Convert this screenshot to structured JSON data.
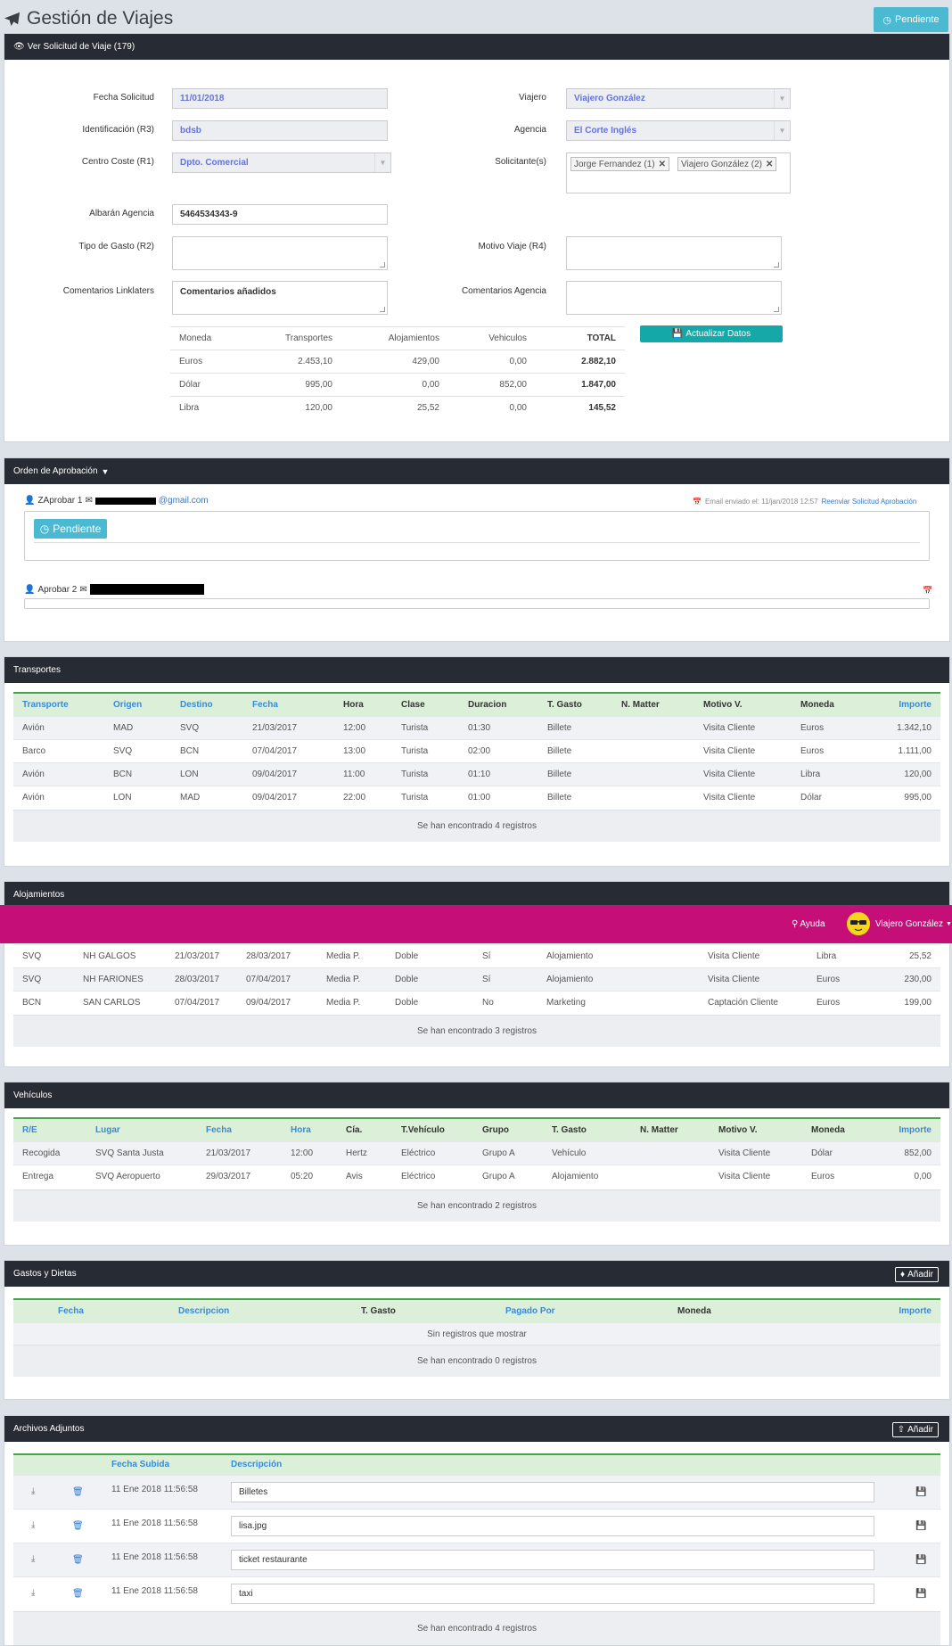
{
  "page": {
    "title": "Gestión de Viajes",
    "status_button": "Pendiente"
  },
  "solicitud": {
    "header": "Ver Solicitud de Viaje (179)",
    "fields": {
      "fecha_label": "Fecha Solicitud",
      "fecha_value": "11/01/2018",
      "ident_label": "Identificación (R3)",
      "ident_value": "bdsb",
      "centro_label": "Centro Coste (R1)",
      "centro_value": "Dpto. Comercial",
      "albaran_label": "Albarán Agencia",
      "albaran_value": "5464534343-9",
      "tipo_label": "Tipo de Gasto (R2)",
      "tipo_value": "",
      "coment_lnk_label": "Comentarios Linklaters",
      "coment_lnk_value": "Comentarios añadidos",
      "viajero_label": "Viajero",
      "viajero_value": "Viajero González",
      "agencia_label": "Agencia",
      "agencia_value": "El Corte Inglés",
      "solicitantes_label": "Solicitante(s)",
      "solicitante_1": "Jorge Fernandez (1)",
      "solicitante_2": "Viajero González (2)",
      "motivo_label": "Motivo Viaje (R4)",
      "motivo_value": "",
      "coment_ag_label": "Comentarios Agencia",
      "coment_ag_value": ""
    },
    "update_button": "Actualizar Datos",
    "currency_table": {
      "headers": [
        "Moneda",
        "Transportes",
        "Alojamientos",
        "Vehiculos",
        "TOTAL"
      ],
      "rows": [
        [
          "Euros",
          "2.453,10",
          "429,00",
          "0,00",
          "2.882,10"
        ],
        [
          "Dólar",
          "995,00",
          "0,00",
          "852,00",
          "1.847,00"
        ],
        [
          "Libra",
          "120,00",
          "25,52",
          "0,00",
          "145,52"
        ]
      ]
    }
  },
  "aprobacion": {
    "header": "Orden de Aprobación",
    "approver1": {
      "label": "ZAprobar 1",
      "email_suffix": "@gmail.com",
      "email_info": "Email enviado el: 11/jan/2018 12:57",
      "resend_link": "Reenviar Solicitud Aprobación",
      "status": "Pendiente"
    },
    "approver2": {
      "label": "Aprobar 2"
    }
  },
  "transportes": {
    "header": "Transportes",
    "columns": [
      "Transporte",
      "Origen",
      "Destino",
      "Fecha",
      "Hora",
      "Clase",
      "Duracion",
      "T. Gasto",
      "N. Matter",
      "Motivo V.",
      "Moneda",
      "Importe"
    ],
    "rows": [
      [
        "Avión",
        "MAD",
        "SVQ",
        "21/03/2017",
        "12:00",
        "Turista",
        "01:30",
        "Billete",
        "",
        "Visita Cliente",
        "Euros",
        "1.342,10"
      ],
      [
        "Barco",
        "SVQ",
        "BCN",
        "07/04/2017",
        "13:00",
        "Turista",
        "02:00",
        "Billete",
        "",
        "Visita Cliente",
        "Euros",
        "1.111,00"
      ],
      [
        "Avión",
        "BCN",
        "LON",
        "09/04/2017",
        "11:00",
        "Turista",
        "01:10",
        "Billete",
        "",
        "Visita Cliente",
        "Libra",
        "120,00"
      ],
      [
        "Avión",
        "LON",
        "MAD",
        "09/04/2017",
        "22:00",
        "Turista",
        "01:00",
        "Billete",
        "",
        "Visita Cliente",
        "Dólar",
        "995,00"
      ]
    ],
    "footer": "Se han encontrado 4 registros"
  },
  "alojamientos": {
    "header": "Alojamientos",
    "rows": [
      [
        "SVQ",
        "NH GALGOS",
        "21/03/2017",
        "28/03/2017",
        "Media P.",
        "Doble",
        "Sí",
        "Alojamiento",
        "",
        "Visita Cliente",
        "Libra",
        "25,52"
      ],
      [
        "SVQ",
        "NH FARIONES",
        "28/03/2017",
        "07/04/2017",
        "Media P.",
        "Doble",
        "Sí",
        "Alojamiento",
        "",
        "Visita Cliente",
        "Euros",
        "230,00"
      ],
      [
        "BCN",
        "SAN CARLOS",
        "07/04/2017",
        "09/04/2017",
        "Media P.",
        "Doble",
        "No",
        "Marketing",
        "",
        "Captación Cliente",
        "Euros",
        "199,00"
      ]
    ],
    "footer": "Se han encontrado 3 registros"
  },
  "banner": {
    "help": "Ayuda",
    "user": "Viajero González"
  },
  "vehiculos": {
    "header": "Vehículos",
    "columns": [
      "R/E",
      "Lugar",
      "Fecha",
      "Hora",
      "Cía.",
      "T.Vehículo",
      "Grupo",
      "T. Gasto",
      "N. Matter",
      "Motivo V.",
      "Moneda",
      "Importe"
    ],
    "rows": [
      [
        "Recogida",
        "SVQ Santa Justa",
        "21/03/2017",
        "12:00",
        "Hertz",
        "Eléctrico",
        "Grupo A",
        "Vehículo",
        "",
        "Visita Cliente",
        "Dólar",
        "852,00"
      ],
      [
        "Entrega",
        "SVQ Aeropuerto",
        "29/03/2017",
        "05:20",
        "Avis",
        "Eléctrico",
        "Grupo A",
        "Alojamiento",
        "",
        "Visita Cliente",
        "Euros",
        "0,00"
      ]
    ],
    "footer": "Se han encontrado 2 registros"
  },
  "gastos": {
    "header": "Gastos y Dietas",
    "add_button": "Añadir",
    "columns": [
      "Fecha",
      "Descripcion",
      "T. Gasto",
      "Pagado Por",
      "Moneda",
      "Importe"
    ],
    "empty": "Sin registros que mostrar",
    "footer": "Se han encontrado 0 registros"
  },
  "adjuntos": {
    "header": "Archivos Adjuntos",
    "add_button": "Añadir",
    "columns": [
      "Fecha Subida",
      "Descripción"
    ],
    "rows": [
      {
        "fecha": "11 Ene 2018 11:56:58",
        "desc": "Billetes"
      },
      {
        "fecha": "11 Ene 2018 11:56:58",
        "desc": "lisa.jpg"
      },
      {
        "fecha": "11 Ene 2018 11:56:58",
        "desc": "ticket restaurante"
      },
      {
        "fecha": "11 Ene 2018 11:56:58",
        "desc": "taxi"
      }
    ],
    "footer": "Se han encontrado 4 registros"
  },
  "colors": {
    "header_dark": "#272b33",
    "info": "#4bb9d2",
    "teal": "#14a8a8",
    "banner": "#c50e78",
    "grid_head": "#dcefd9",
    "link": "#3a8ad5"
  }
}
